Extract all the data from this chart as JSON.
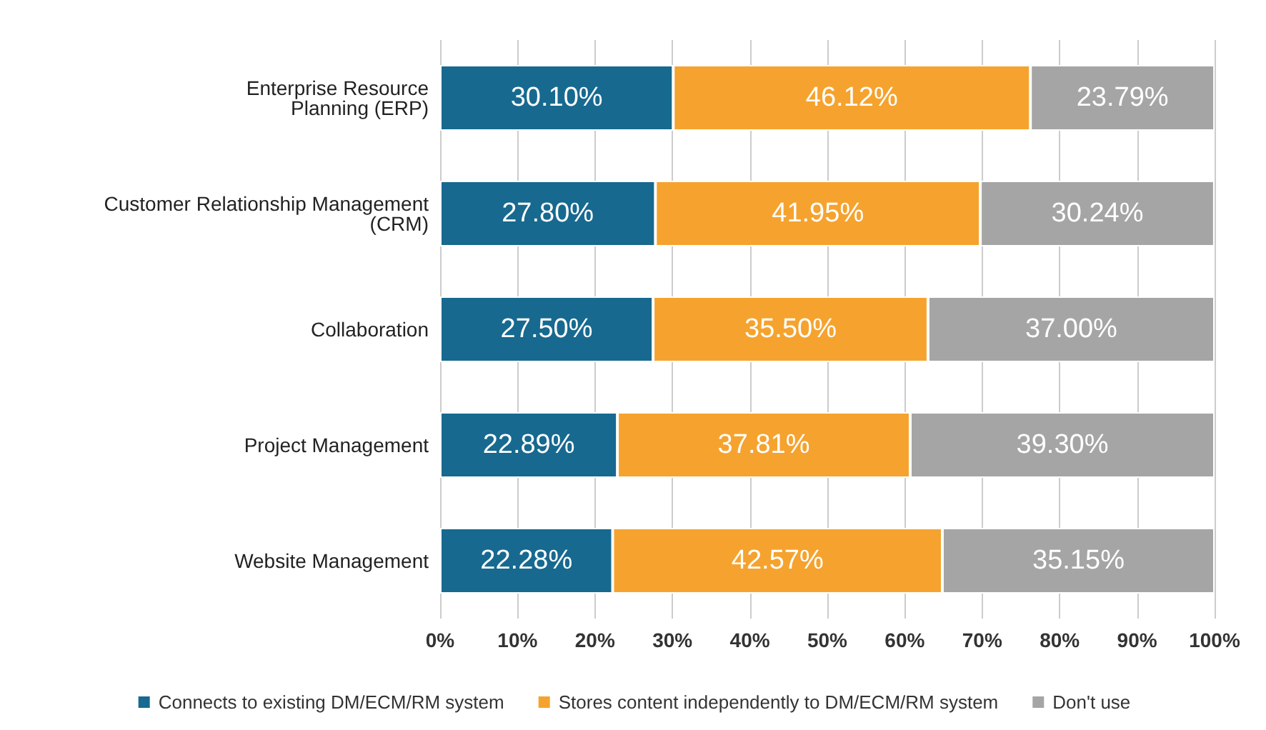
{
  "chart_data": {
    "type": "bar",
    "orientation": "horizontal",
    "stacked": true,
    "categories": [
      "Enterprise Resource\nPlanning (ERP)",
      "Customer Relationship Management\n(CRM)",
      "Collaboration",
      "Project Management",
      "Website Management"
    ],
    "series": [
      {
        "name": "Connects to existing DM/ECM/RM system",
        "color": "#17698f",
        "values": [
          30.1,
          27.8,
          27.5,
          22.89,
          22.28
        ],
        "value_labels": [
          "30.10%",
          "27.80%",
          "27.50%",
          "22.89%",
          "22.28%"
        ]
      },
      {
        "name": "Stores content independently to DM/ECM/RM system",
        "color": "#f5a32e",
        "values": [
          46.12,
          41.95,
          35.5,
          37.81,
          42.57
        ],
        "value_labels": [
          "46.12%",
          "41.95%",
          "35.50%",
          "37.81%",
          "42.57%"
        ]
      },
      {
        "name": "Don't use",
        "color": "#a5a5a5",
        "values": [
          23.79,
          30.24,
          37.0,
          39.3,
          35.15
        ],
        "value_labels": [
          "23.79%",
          "30.24%",
          "37.00%",
          "39.30%",
          "35.15%"
        ]
      }
    ],
    "xlim": [
      0,
      100
    ],
    "xticks": [
      {
        "value": 0,
        "label": "0%"
      },
      {
        "value": 10,
        "label": "10%"
      },
      {
        "value": 20,
        "label": "20%"
      },
      {
        "value": 30,
        "label": "30%"
      },
      {
        "value": 40,
        "label": "40%"
      },
      {
        "value": 50,
        "label": "50%"
      },
      {
        "value": 60,
        "label": "60%"
      },
      {
        "value": 70,
        "label": "70%"
      },
      {
        "value": 80,
        "label": "80%"
      },
      {
        "value": 90,
        "label": "90%"
      },
      {
        "value": 100,
        "label": "100%"
      }
    ],
    "grid": "x",
    "legend": "bottom"
  }
}
